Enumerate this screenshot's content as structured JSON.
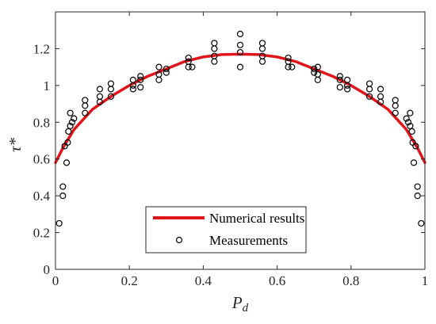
{
  "chart_data": {
    "type": "scatter",
    "title": "",
    "xlabel": "P",
    "xlabel_subscript": "d",
    "ylabel": "τ*",
    "xlim": [
      0,
      1
    ],
    "ylim": [
      0,
      1.4
    ],
    "xticks": [
      "0",
      "0.2",
      "0.4",
      "0.6",
      "0.8",
      "1"
    ],
    "yticks": [
      "0",
      "0.2",
      "0.4",
      "0.6",
      "0.8",
      "1",
      "1.2"
    ],
    "grid": false,
    "legend_position": "bottom-center",
    "colors": {
      "curve": "#e0141a",
      "markers": "#000000",
      "axes": "#262626"
    },
    "series": [
      {
        "name": "Numerical results",
        "kind": "line",
        "x": [
          0,
          0.02,
          0.05,
          0.1,
          0.15,
          0.2,
          0.25,
          0.3,
          0.35,
          0.4,
          0.45,
          0.5,
          0.55,
          0.6,
          0.65,
          0.7,
          0.75,
          0.8,
          0.85,
          0.9,
          0.95,
          0.98,
          1
        ],
        "y": [
          0.58,
          0.66,
          0.76,
          0.87,
          0.94,
          1.0,
          1.05,
          1.09,
          1.13,
          1.155,
          1.168,
          1.17,
          1.168,
          1.155,
          1.13,
          1.09,
          1.05,
          1.0,
          0.94,
          0.87,
          0.76,
          0.66,
          0.58
        ]
      },
      {
        "name": "Measurements",
        "kind": "markers",
        "points": [
          [
            0.01,
            0.25
          ],
          [
            0.02,
            0.4
          ],
          [
            0.02,
            0.45
          ],
          [
            0.025,
            0.67
          ],
          [
            0.03,
            0.58
          ],
          [
            0.033,
            0.69
          ],
          [
            0.035,
            0.75
          ],
          [
            0.04,
            0.78
          ],
          [
            0.04,
            0.85
          ],
          [
            0.045,
            0.8
          ],
          [
            0.05,
            0.82
          ],
          [
            0.08,
            0.85
          ],
          [
            0.08,
            0.89
          ],
          [
            0.08,
            0.92
          ],
          [
            0.12,
            0.91
          ],
          [
            0.12,
            0.94
          ],
          [
            0.12,
            0.98
          ],
          [
            0.15,
            0.94
          ],
          [
            0.15,
            0.98
          ],
          [
            0.15,
            1.01
          ],
          [
            0.21,
            0.98
          ],
          [
            0.21,
            1.0
          ],
          [
            0.21,
            1.03
          ],
          [
            0.23,
            0.99
          ],
          [
            0.23,
            1.03
          ],
          [
            0.23,
            1.05
          ],
          [
            0.28,
            1.03
          ],
          [
            0.28,
            1.06
          ],
          [
            0.28,
            1.1
          ],
          [
            0.3,
            1.07
          ],
          [
            0.3,
            1.09
          ],
          [
            0.36,
            1.1
          ],
          [
            0.36,
            1.13
          ],
          [
            0.36,
            1.15
          ],
          [
            0.37,
            1.1
          ],
          [
            0.43,
            1.13
          ],
          [
            0.43,
            1.16
          ],
          [
            0.43,
            1.2
          ],
          [
            0.43,
            1.23
          ],
          [
            0.5,
            1.1
          ],
          [
            0.5,
            1.18
          ],
          [
            0.5,
            1.22
          ],
          [
            0.5,
            1.28
          ],
          [
            0.56,
            1.13
          ],
          [
            0.56,
            1.16
          ],
          [
            0.56,
            1.2
          ],
          [
            0.56,
            1.23
          ],
          [
            0.63,
            1.1
          ],
          [
            0.63,
            1.13
          ],
          [
            0.63,
            1.15
          ],
          [
            0.64,
            1.1
          ],
          [
            0.7,
            1.07
          ],
          [
            0.7,
            1.09
          ],
          [
            0.71,
            1.03
          ],
          [
            0.71,
            1.06
          ],
          [
            0.71,
            1.1
          ],
          [
            0.77,
            0.99
          ],
          [
            0.77,
            1.03
          ],
          [
            0.77,
            1.05
          ],
          [
            0.79,
            0.98
          ],
          [
            0.79,
            1.0
          ],
          [
            0.79,
            1.03
          ],
          [
            0.85,
            0.94
          ],
          [
            0.85,
            0.98
          ],
          [
            0.85,
            1.01
          ],
          [
            0.88,
            0.91
          ],
          [
            0.88,
            0.94
          ],
          [
            0.88,
            0.98
          ],
          [
            0.92,
            0.85
          ],
          [
            0.92,
            0.89
          ],
          [
            0.92,
            0.92
          ],
          [
            0.95,
            0.82
          ],
          [
            0.955,
            0.8
          ],
          [
            0.96,
            0.78
          ],
          [
            0.96,
            0.85
          ],
          [
            0.965,
            0.75
          ],
          [
            0.967,
            0.69
          ],
          [
            0.97,
            0.58
          ],
          [
            0.975,
            0.67
          ],
          [
            0.98,
            0.45
          ],
          [
            0.98,
            0.4
          ],
          [
            0.99,
            0.25
          ]
        ]
      }
    ],
    "legend": {
      "entries": [
        "Numerical results",
        "Measurements"
      ]
    }
  }
}
